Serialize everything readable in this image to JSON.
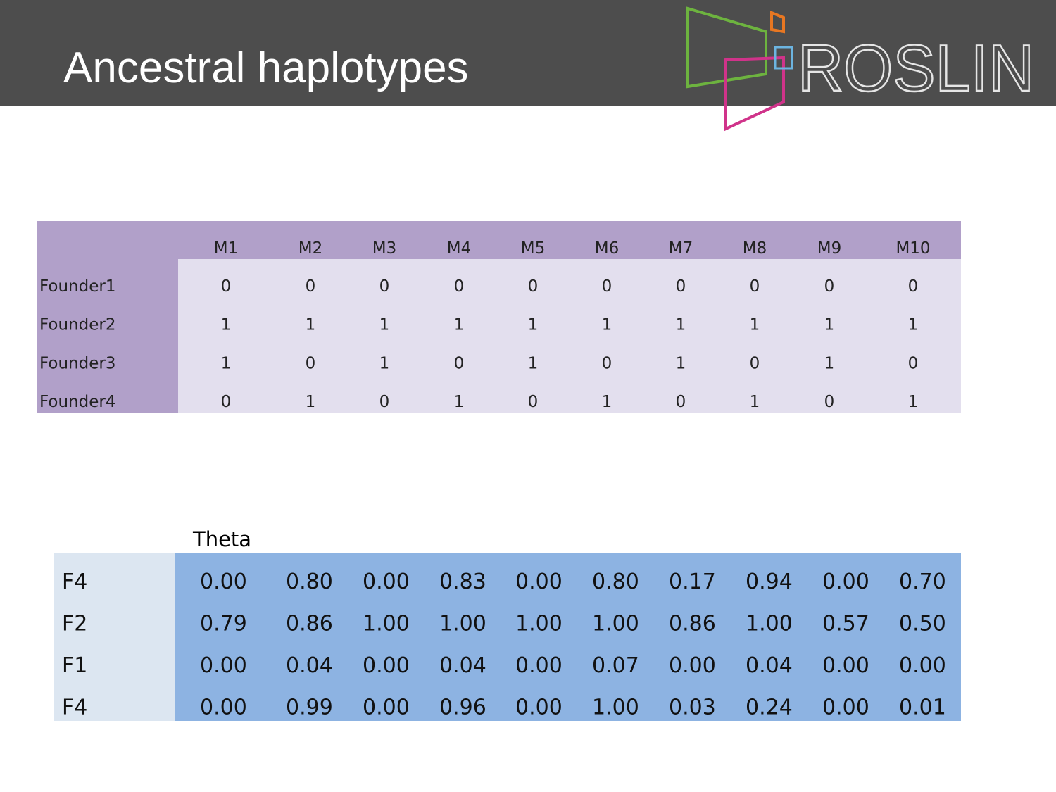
{
  "header": {
    "title": "Ancestral haplotypes",
    "logo": "ROSLIN"
  },
  "haplotype_table": {
    "columns": [
      "M1",
      "M2",
      "M3",
      "M4",
      "M5",
      "M6",
      "M7",
      "M8",
      "M9",
      "M10"
    ],
    "rows": [
      {
        "label": "Founder1",
        "cells": [
          "0",
          "0",
          "0",
          "0",
          "0",
          "0",
          "0",
          "0",
          "0",
          "0"
        ]
      },
      {
        "label": "Founder2",
        "cells": [
          "1",
          "1",
          "1",
          "1",
          "1",
          "1",
          "1",
          "1",
          "1",
          "1"
        ]
      },
      {
        "label": "Founder3",
        "cells": [
          "1",
          "0",
          "1",
          "0",
          "1",
          "0",
          "1",
          "0",
          "1",
          "0"
        ]
      },
      {
        "label": "Founder4",
        "cells": [
          "0",
          "1",
          "0",
          "1",
          "0",
          "1",
          "0",
          "1",
          "0",
          "1"
        ]
      }
    ]
  },
  "theta_table": {
    "title": "Theta",
    "rows": [
      {
        "label": "F4",
        "cells": [
          "0.00",
          "0.80",
          "0.00",
          "0.83",
          "0.00",
          "0.80",
          "0.17",
          "0.94",
          "0.00",
          "0.70"
        ]
      },
      {
        "label": "F2",
        "cells": [
          "0.79",
          "0.86",
          "1.00",
          "1.00",
          "1.00",
          "1.00",
          "0.86",
          "1.00",
          "0.57",
          "0.50"
        ]
      },
      {
        "label": "F1",
        "cells": [
          "0.00",
          "0.04",
          "0.00",
          "0.04",
          "0.00",
          "0.07",
          "0.00",
          "0.04",
          "0.00",
          "0.00"
        ]
      },
      {
        "label": "F4",
        "cells": [
          "0.00",
          "0.99",
          "0.00",
          "0.96",
          "0.00",
          "1.00",
          "0.03",
          "0.24",
          "0.00",
          "0.01"
        ]
      }
    ]
  }
}
